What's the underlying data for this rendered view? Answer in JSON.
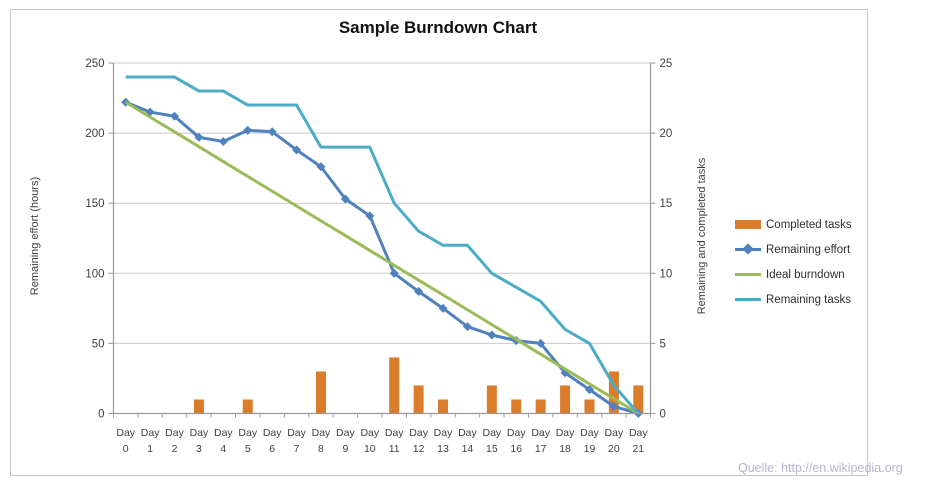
{
  "page": {
    "source_note": "Quelle: http://en.wikipedia.org"
  },
  "chart_data": {
    "type": "combo",
    "title": "Sample Burndown Chart",
    "categories": [
      "Day 0",
      "Day 1",
      "Day 2",
      "Day 3",
      "Day 4",
      "Day 5",
      "Day 6",
      "Day 7",
      "Day 8",
      "Day 9",
      "Day 10",
      "Day 11",
      "Day 12",
      "Day 13",
      "Day 14",
      "Day 15",
      "Day 16",
      "Day 17",
      "Day 18",
      "Day 19",
      "Day 20",
      "Day 21"
    ],
    "series": [
      {
        "name": "Completed tasks",
        "type": "bar",
        "axis": "right",
        "color": "#DB7C2B",
        "values": [
          null,
          null,
          null,
          1,
          null,
          1,
          null,
          null,
          3,
          null,
          null,
          4,
          2,
          1,
          null,
          2,
          1,
          1,
          2,
          1,
          3,
          2
        ]
      },
      {
        "name": "Remaining effort",
        "type": "line",
        "axis": "left",
        "marker": "diamond",
        "color": "#4F81BD",
        "values": [
          222,
          215,
          212,
          197,
          194,
          202,
          201,
          188,
          176,
          153,
          141,
          100,
          87,
          75,
          62,
          56,
          52,
          50,
          29,
          17,
          5,
          0
        ]
      },
      {
        "name": "Ideal burndown",
        "type": "line",
        "axis": "left",
        "color": "#9BBB59",
        "values": [
          222,
          211.4,
          200.9,
          190.3,
          179.7,
          169.1,
          158.6,
          148,
          137.4,
          126.9,
          116.3,
          105.7,
          95.1,
          84.6,
          74,
          63.4,
          52.9,
          42.3,
          31.7,
          21.1,
          10.6,
          0
        ]
      },
      {
        "name": "Remaining tasks",
        "type": "line",
        "axis": "right",
        "color": "#4BACC6",
        "values": [
          24,
          24,
          24,
          23,
          23,
          22,
          22,
          22,
          19,
          19,
          19,
          15,
          13,
          12,
          12,
          10,
          9,
          8,
          6,
          5,
          2,
          0
        ]
      }
    ],
    "left_axis": {
      "title": "Remaining effort (hours)",
      "min": 0,
      "max": 250,
      "ticks": [
        0,
        50,
        100,
        150,
        200,
        250
      ]
    },
    "right_axis": {
      "title": "Remaining and completed tasks",
      "min": 0,
      "max": 25,
      "ticks": [
        0,
        5,
        10,
        15,
        20,
        25
      ]
    },
    "legend": [
      "Completed tasks",
      "Remaining effort",
      "Ideal burndown",
      "Remaining tasks"
    ],
    "legend_position": "right",
    "grid": true,
    "colors": {
      "frame_border": "#c6c6c6",
      "axis_line": "#9a9a9a",
      "gridline": "#c9c9c9",
      "tick_text": "#3f3f46",
      "title_text": "#121212",
      "source_text": "#b5b5cf",
      "background": "#ffffff"
    }
  }
}
